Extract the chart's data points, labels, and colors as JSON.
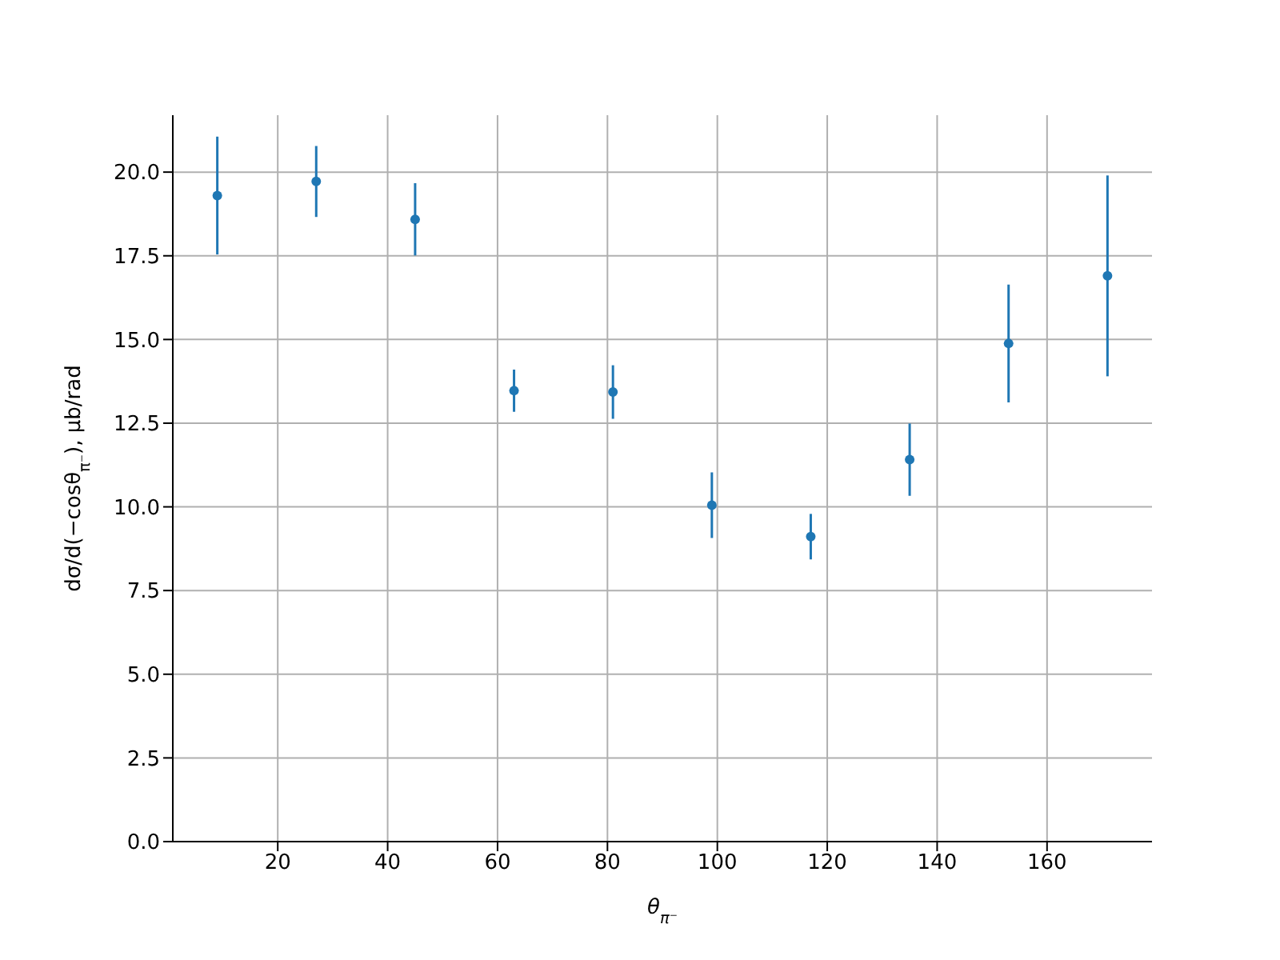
{
  "chart_data": {
    "type": "scatter",
    "xlabel": "θ$_{π⁻}$",
    "ylabel": "dσ/d(−cosθ$_{π⁻}$), μb/rad",
    "x": [
      9,
      27,
      45,
      63,
      81,
      99,
      117,
      135,
      153,
      171
    ],
    "series": [
      {
        "color": "#1f77b4",
        "values": [
          19.3,
          19.72,
          18.59,
          13.47,
          13.43,
          10.05,
          9.11,
          11.41,
          14.88,
          16.9
        ],
        "errors": [
          1.76,
          1.06,
          1.08,
          0.63,
          0.8,
          0.98,
          0.68,
          1.08,
          1.76,
          3.0
        ]
      }
    ],
    "xlim": [
      0.9,
      179.1
    ],
    "xticks": [
      20,
      40,
      60,
      80,
      100,
      120,
      140,
      160
    ],
    "ylim": [
      0,
      21.7
    ],
    "yticks": [
      {
        "value": 0,
        "label": "0.0"
      },
      {
        "value": 2.5,
        "label": "2.5"
      },
      {
        "value": 5,
        "label": "5.0"
      },
      {
        "value": 7.5,
        "label": "7.5"
      },
      {
        "value": 10,
        "label": "10.0"
      },
      {
        "value": 12.5,
        "label": "12.5"
      },
      {
        "value": 15,
        "label": "15.0"
      },
      {
        "value": 17.5,
        "label": "17.5"
      },
      {
        "value": 20,
        "label": "20.0"
      }
    ],
    "grid": true,
    "marker": "circle",
    "legend": false
  }
}
